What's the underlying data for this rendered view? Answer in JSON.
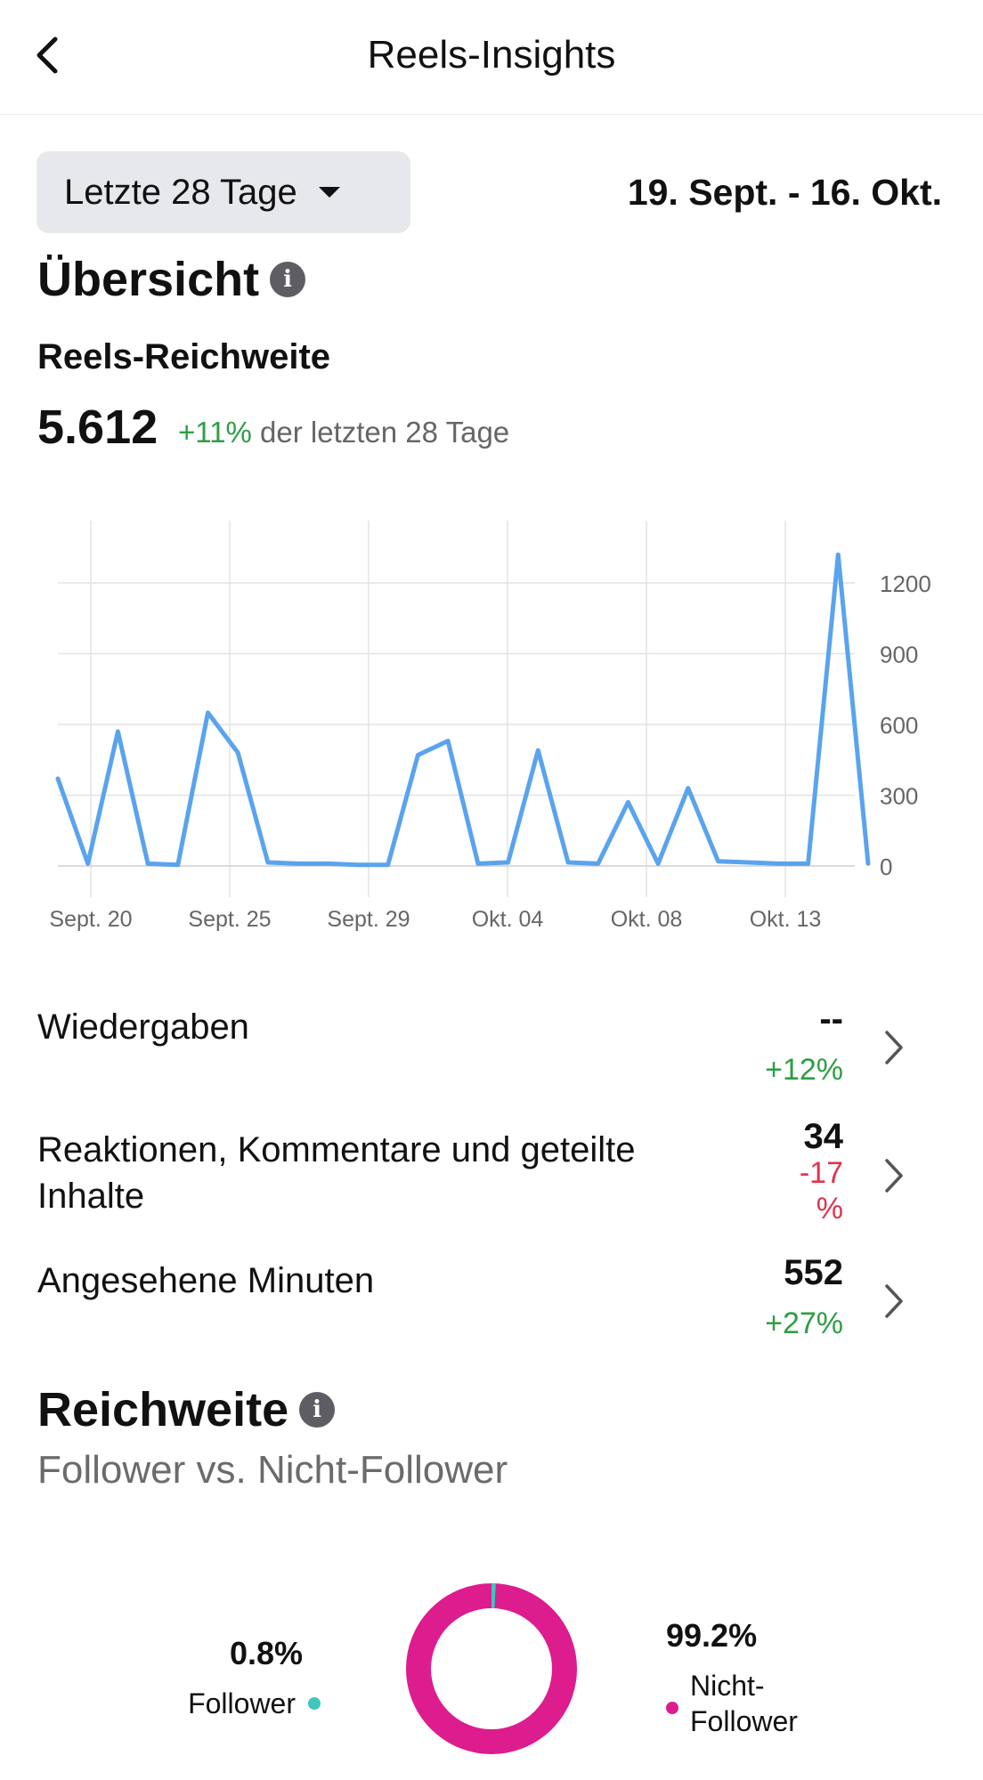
{
  "header": {
    "title": "Reels-Insights",
    "back_icon": "chevron-left-icon"
  },
  "filter": {
    "range_label": "Letzte 28 Tage",
    "date_range": "19. Sept. - 16. Okt."
  },
  "overview": {
    "title": "Übersicht",
    "metric_title": "Reels-Reichweite",
    "value": "5.612",
    "delta": "+11%",
    "delta_suffix": "der letzten 28 Tage"
  },
  "chart_data": {
    "type": "line",
    "x_tick_labels": [
      "Sept. 20",
      "Sept. 25",
      "Sept. 29",
      "Okt. 04",
      "Okt. 08",
      "Okt. 13"
    ],
    "y_ticks": [
      "1200",
      "900",
      "600",
      "300",
      "0"
    ],
    "ylim": [
      0,
      1500
    ],
    "grid": true,
    "series": [
      {
        "color": "#5aa3ee",
        "values": [
          370,
          10,
          570,
          10,
          5,
          650,
          480,
          15,
          10,
          10,
          5,
          5,
          470,
          530,
          10,
          15,
          490,
          15,
          10,
          270,
          10,
          330,
          20,
          15,
          10,
          10,
          1320,
          10
        ]
      }
    ]
  },
  "metrics": [
    {
      "label": "Wiedergaben",
      "value": "--",
      "delta": "+12%",
      "trend": "up"
    },
    {
      "label_line1": "Reaktionen, Kommentare und geteilte",
      "label_line2": "Inhalte",
      "value": "34",
      "delta_line1": "-17",
      "delta_line2": "%",
      "trend": "down"
    },
    {
      "label": "Angesehene Minuten",
      "value": "552",
      "delta": "+27%",
      "trend": "up"
    }
  ],
  "reach": {
    "title": "Reichweite",
    "subtitle": "Follower vs. Nicht-Follower",
    "follower_pct": "0.8%",
    "follower_label": "Follower",
    "nonfollower_pct": "99.2%",
    "nonfollower_label_line1": "Nicht-",
    "nonfollower_label_line2": "Follower",
    "follower_share": 0.008,
    "colors": {
      "follower": "#3cc7c0",
      "nonfollower": "#dd1c8e"
    }
  }
}
